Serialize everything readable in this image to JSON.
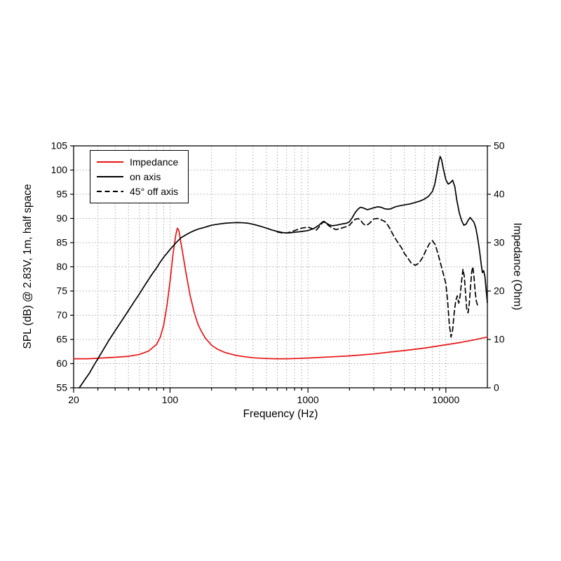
{
  "chart_data": {
    "type": "line",
    "title": "",
    "xlabel": "Frequency (Hz)",
    "ylabel_left": "SPL (dB) @ 2.83V, 1m, half space",
    "ylabel_right": "Impedance (Ohm)",
    "x_scale": "log",
    "x_range": [
      20,
      20000
    ],
    "y_left_range": [
      55,
      105
    ],
    "y_right_range": [
      0,
      50
    ],
    "x_tick_labels": [
      20,
      100,
      1000,
      10000
    ],
    "y_left_ticks": [
      55,
      60,
      65,
      70,
      75,
      80,
      85,
      90,
      95,
      100,
      105
    ],
    "y_right_ticks": [
      0,
      10,
      20,
      30,
      40,
      50
    ],
    "grid": "dotted",
    "grid_color": "#aaaaaa",
    "legend_position": "top-left",
    "series": [
      {
        "name": "Impedance",
        "axis": "right",
        "color": "#e81414",
        "style": "solid",
        "points": [
          [
            20,
            6.0
          ],
          [
            25,
            6.0
          ],
          [
            30,
            6.1
          ],
          [
            40,
            6.3
          ],
          [
            50,
            6.5
          ],
          [
            60,
            6.9
          ],
          [
            70,
            7.6
          ],
          [
            80,
            9.0
          ],
          [
            85,
            10.5
          ],
          [
            90,
            13.0
          ],
          [
            95,
            17.0
          ],
          [
            100,
            22.0
          ],
          [
            105,
            27.5
          ],
          [
            110,
            31.5
          ],
          [
            113,
            33.0
          ],
          [
            116,
            32.5
          ],
          [
            120,
            30.0
          ],
          [
            125,
            27.0
          ],
          [
            130,
            24.0
          ],
          [
            140,
            19.0
          ],
          [
            150,
            15.5
          ],
          [
            160,
            13.0
          ],
          [
            170,
            11.5
          ],
          [
            180,
            10.3
          ],
          [
            200,
            8.8
          ],
          [
            220,
            8.0
          ],
          [
            250,
            7.3
          ],
          [
            300,
            6.7
          ],
          [
            350,
            6.4
          ],
          [
            400,
            6.2
          ],
          [
            500,
            6.05
          ],
          [
            600,
            6.0
          ],
          [
            700,
            6.0
          ],
          [
            800,
            6.05
          ],
          [
            1000,
            6.15
          ],
          [
            1500,
            6.4
          ],
          [
            2000,
            6.6
          ],
          [
            3000,
            7.0
          ],
          [
            4000,
            7.4
          ],
          [
            5000,
            7.7
          ],
          [
            7000,
            8.2
          ],
          [
            10000,
            8.9
          ],
          [
            13000,
            9.4
          ],
          [
            16000,
            9.9
          ],
          [
            20000,
            10.5
          ]
        ]
      },
      {
        "name": "on axis",
        "axis": "left",
        "color": "#000000",
        "style": "solid",
        "points": [
          [
            22,
            55
          ],
          [
            24,
            56.6
          ],
          [
            26,
            58
          ],
          [
            28,
            59.6
          ],
          [
            30,
            61
          ],
          [
            33,
            63
          ],
          [
            36,
            64.8
          ],
          [
            40,
            66.8
          ],
          [
            45,
            69
          ],
          [
            50,
            71
          ],
          [
            55,
            72.8
          ],
          [
            60,
            74.4
          ],
          [
            65,
            76
          ],
          [
            70,
            77.4
          ],
          [
            75,
            78.7
          ],
          [
            80,
            79.8
          ],
          [
            85,
            81
          ],
          [
            90,
            82
          ],
          [
            95,
            82.8
          ],
          [
            100,
            83.6
          ],
          [
            110,
            84.9
          ],
          [
            120,
            86
          ],
          [
            130,
            86.6
          ],
          [
            140,
            87.1
          ],
          [
            150,
            87.5
          ],
          [
            160,
            87.8
          ],
          [
            170,
            88
          ],
          [
            180,
            88.2
          ],
          [
            190,
            88.4
          ],
          [
            200,
            88.6
          ],
          [
            220,
            88.8
          ],
          [
            250,
            89
          ],
          [
            280,
            89.1
          ],
          [
            310,
            89.15
          ],
          [
            340,
            89.1
          ],
          [
            370,
            89
          ],
          [
            400,
            88.8
          ],
          [
            450,
            88.4
          ],
          [
            500,
            88
          ],
          [
            550,
            87.6
          ],
          [
            600,
            87.3
          ],
          [
            650,
            87.1
          ],
          [
            700,
            87
          ],
          [
            750,
            87.05
          ],
          [
            800,
            87.15
          ],
          [
            900,
            87.3
          ],
          [
            1000,
            87.5
          ],
          [
            1100,
            87.9
          ],
          [
            1200,
            88.6
          ],
          [
            1280,
            89.3
          ],
          [
            1350,
            89.1
          ],
          [
            1420,
            88.7
          ],
          [
            1500,
            88.5
          ],
          [
            1600,
            88.6
          ],
          [
            1700,
            88.75
          ],
          [
            1800,
            88.9
          ],
          [
            1900,
            89
          ],
          [
            2000,
            89.3
          ],
          [
            2100,
            90.2
          ],
          [
            2200,
            91.2
          ],
          [
            2300,
            91.9
          ],
          [
            2400,
            92.3
          ],
          [
            2500,
            92.2
          ],
          [
            2600,
            92
          ],
          [
            2700,
            91.8
          ],
          [
            2850,
            92
          ],
          [
            3000,
            92.2
          ],
          [
            3200,
            92.4
          ],
          [
            3400,
            92.3
          ],
          [
            3600,
            92
          ],
          [
            3800,
            91.9
          ],
          [
            4000,
            92
          ],
          [
            4300,
            92.4
          ],
          [
            4600,
            92.6
          ],
          [
            5000,
            92.8
          ],
          [
            5500,
            93
          ],
          [
            6000,
            93.3
          ],
          [
            6500,
            93.6
          ],
          [
            7000,
            94
          ],
          [
            7500,
            94.6
          ],
          [
            8000,
            95.6
          ],
          [
            8300,
            97
          ],
          [
            8600,
            99.3
          ],
          [
            8900,
            101.8
          ],
          [
            9100,
            102.8
          ],
          [
            9300,
            102.2
          ],
          [
            9600,
            100.2
          ],
          [
            10000,
            98
          ],
          [
            10400,
            97.1
          ],
          [
            10800,
            97.4
          ],
          [
            11200,
            97.9
          ],
          [
            11600,
            96.6
          ],
          [
            12000,
            93.8
          ],
          [
            12500,
            91.2
          ],
          [
            13000,
            89.6
          ],
          [
            13500,
            88.6
          ],
          [
            14000,
            88.8
          ],
          [
            14500,
            89.6
          ],
          [
            15000,
            90.2
          ],
          [
            15500,
            89.7
          ],
          [
            16000,
            89.2
          ],
          [
            16500,
            88
          ],
          [
            17000,
            86
          ],
          [
            17500,
            83.6
          ],
          [
            18000,
            80.8
          ],
          [
            18400,
            78.8
          ],
          [
            18800,
            79.2
          ],
          [
            19200,
            78
          ],
          [
            19600,
            75.2
          ],
          [
            20000,
            72.6
          ]
        ]
      },
      {
        "name": "45° off axis",
        "axis": "left",
        "color": "#000000",
        "style": "dashed",
        "points": [
          [
            600,
            87.2
          ],
          [
            650,
            87
          ],
          [
            700,
            87
          ],
          [
            750,
            87.2
          ],
          [
            800,
            87.5
          ],
          [
            900,
            88
          ],
          [
            1000,
            88.2
          ],
          [
            1100,
            87.8
          ],
          [
            1150,
            87.6
          ],
          [
            1200,
            88.2
          ],
          [
            1300,
            89.4
          ],
          [
            1350,
            89.2
          ],
          [
            1400,
            88.6
          ],
          [
            1500,
            88
          ],
          [
            1600,
            87.7
          ],
          [
            1700,
            87.9
          ],
          [
            1800,
            88.1
          ],
          [
            1900,
            88.3
          ],
          [
            2000,
            88.6
          ],
          [
            2100,
            89.3
          ],
          [
            2200,
            89.8
          ],
          [
            2300,
            90
          ],
          [
            2400,
            89.7
          ],
          [
            2500,
            89
          ],
          [
            2600,
            88.6
          ],
          [
            2700,
            88.7
          ],
          [
            2800,
            89
          ],
          [
            2900,
            89.5
          ],
          [
            3000,
            89.9
          ],
          [
            3200,
            90
          ],
          [
            3400,
            89.7
          ],
          [
            3600,
            89.4
          ],
          [
            3800,
            88.6
          ],
          [
            4000,
            87.5
          ],
          [
            4200,
            86.3
          ],
          [
            4500,
            85
          ],
          [
            4800,
            83.8
          ],
          [
            5000,
            82.8
          ],
          [
            5300,
            81.8
          ],
          [
            5600,
            80.8
          ],
          [
            6000,
            80.3
          ],
          [
            6400,
            80.8
          ],
          [
            6800,
            82
          ],
          [
            7200,
            83.5
          ],
          [
            7600,
            84.8
          ],
          [
            8000,
            85.4
          ],
          [
            8400,
            84.5
          ],
          [
            8800,
            82.5
          ],
          [
            9200,
            80.5
          ],
          [
            9600,
            78.5
          ],
          [
            10000,
            76.5
          ],
          [
            10300,
            73
          ],
          [
            10600,
            68
          ],
          [
            10900,
            65.5
          ],
          [
            11200,
            67
          ],
          [
            11500,
            70.5
          ],
          [
            11800,
            73
          ],
          [
            12100,
            74
          ],
          [
            12400,
            72.5
          ],
          [
            12700,
            74
          ],
          [
            13000,
            77
          ],
          [
            13300,
            79.5
          ],
          [
            13600,
            78
          ],
          [
            13900,
            74.5
          ],
          [
            14200,
            71
          ],
          [
            14500,
            70.5
          ],
          [
            14800,
            72.5
          ],
          [
            15100,
            76
          ],
          [
            15400,
            79
          ],
          [
            15700,
            80
          ],
          [
            16000,
            78
          ],
          [
            16300,
            75
          ],
          [
            16600,
            73
          ],
          [
            17000,
            72
          ]
        ]
      }
    ]
  }
}
